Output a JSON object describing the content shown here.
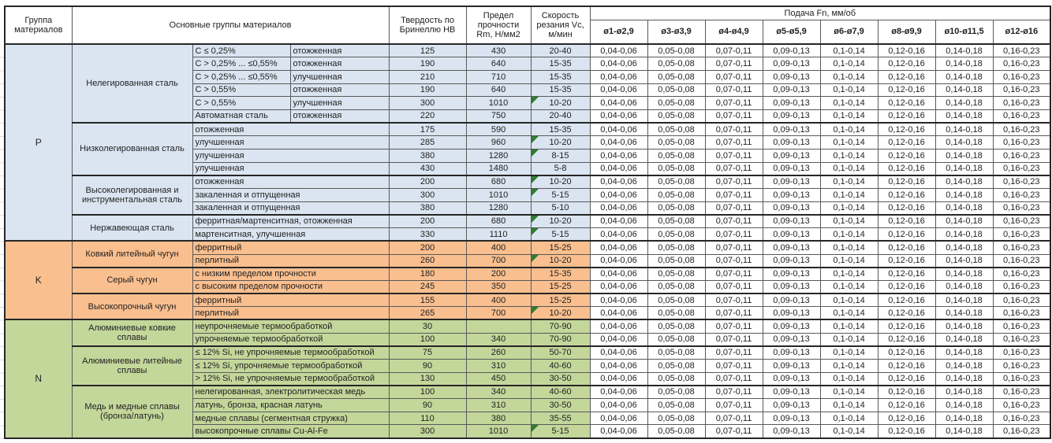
{
  "header": {
    "group": "Группа материалов",
    "materials": "Основные группы материалов",
    "hardness": "Твердость по Бринеллю HB",
    "strength": "Предел прочности Rm, Н/мм2",
    "speed": "Скорость резания Vc, м/мин",
    "feed": "Подача Fn, мм/об"
  },
  "feed_columns": [
    "ø1-ø2,9",
    "ø3-ø3,9",
    "ø4-ø4,9",
    "ø5-ø5,9",
    "ø6-ø7,9",
    "ø8-ø9,9",
    "ø10-ø11,5",
    "ø12-ø16"
  ],
  "feed_values": [
    "0,04-0,06",
    "0,05-0,08",
    "0,07-0,11",
    "0,09-0,13",
    "0,1-0,14",
    "0,12-0,16",
    "0,14-0,18",
    "0,16-0,23"
  ],
  "colors": {
    "group_p": "#dbe5f1",
    "group_k": "#fabf8f",
    "group_n": "#c4d79b",
    "flag": "#2e7d32",
    "border_thin": "#595959",
    "border_strong": "#262626"
  },
  "groups": [
    {
      "id": "P",
      "color_key": "group_p",
      "subgroups": [
        {
          "name": "Нелегированная сталь",
          "split": true,
          "rows": [
            {
              "c1": "C ≤ 0,25%",
              "c2": "отожженная",
              "hb": "125",
              "rm": "430",
              "vc": "20-40",
              "flag": false
            },
            {
              "c1": "C > 0,25% ... ≤0,55%",
              "c2": "отожженная",
              "hb": "190",
              "rm": "640",
              "vc": "15-35",
              "flag": false
            },
            {
              "c1": "C > 0,25% ... ≤0,55%",
              "c2": "улучшенная",
              "hb": "210",
              "rm": "710",
              "vc": "15-35",
              "flag": false
            },
            {
              "c1": "C > 0,55%",
              "c2": "отожженная",
              "hb": "190",
              "rm": "640",
              "vc": "15-35",
              "flag": false
            },
            {
              "c1": "C > 0,55%",
              "c2": "улучшенная",
              "hb": "300",
              "rm": "1010",
              "vc": "10-20",
              "flag": true
            },
            {
              "c1": "Автоматная сталь",
              "c2": "отожженная",
              "hb": "220",
              "rm": "750",
              "vc": "20-40",
              "flag": false
            }
          ]
        },
        {
          "name": "Низколегированная сталь",
          "split": false,
          "rows": [
            {
              "desc": "отожженная",
              "hb": "175",
              "rm": "590",
              "vc": "15-35",
              "flag": false
            },
            {
              "desc": "улучшенная",
              "hb": "285",
              "rm": "960",
              "vc": "10-20",
              "flag": true
            },
            {
              "desc": "улучшенная",
              "hb": "380",
              "rm": "1280",
              "vc": "8-15",
              "flag": true
            },
            {
              "desc": "улучшенная",
              "hb": "430",
              "rm": "1480",
              "vc": "5-8",
              "flag": false
            }
          ]
        },
        {
          "name": "Высоколегированная и инструментальная сталь",
          "split": false,
          "rows": [
            {
              "desc": "отожженная",
              "hb": "200",
              "rm": "680",
              "vc": "10-20",
              "flag": true
            },
            {
              "desc": "закаленная и отпущенная",
              "hb": "300",
              "rm": "1010",
              "vc": "5-15",
              "flag": true
            },
            {
              "desc": "закаленная и отпущенная",
              "hb": "380",
              "rm": "1280",
              "vc": "5-10",
              "flag": false
            }
          ]
        },
        {
          "name": "Нержавеющая сталь",
          "split": false,
          "rows": [
            {
              "desc": "ферритная/мартенситная, отожженная",
              "hb": "200",
              "rm": "680",
              "vc": "10-20",
              "flag": true
            },
            {
              "desc": "мартенситная, улучшенная",
              "hb": "330",
              "rm": "1110",
              "vc": "5-15",
              "flag": true
            }
          ]
        }
      ]
    },
    {
      "id": "K",
      "color_key": "group_k",
      "subgroups": [
        {
          "name": "Ковкий литейный чугун",
          "split": false,
          "rows": [
            {
              "desc": "ферритный",
              "hb": "200",
              "rm": "400",
              "vc": "15-25",
              "flag": false
            },
            {
              "desc": "перлитный",
              "hb": "260",
              "rm": "700",
              "vc": "10-20",
              "flag": true
            }
          ]
        },
        {
          "name": "Серый чугун",
          "split": false,
          "rows": [
            {
              "desc": "с низким пределом прочности",
              "hb": "180",
              "rm": "200",
              "vc": "15-35",
              "flag": false
            },
            {
              "desc": "с высоким пределом прочности",
              "hb": "245",
              "rm": "350",
              "vc": "15-25",
              "flag": false
            }
          ]
        },
        {
          "name": "Высокопрочный чугун",
          "split": false,
          "rows": [
            {
              "desc": "ферритный",
              "hb": "155",
              "rm": "400",
              "vc": "15-25",
              "flag": false
            },
            {
              "desc": "перлитный",
              "hb": "265",
              "rm": "700",
              "vc": "10-20",
              "flag": true
            }
          ]
        }
      ]
    },
    {
      "id": "N",
      "color_key": "group_n",
      "subgroups": [
        {
          "name": "Алюминиевые ковкие сплавы",
          "split": false,
          "rows": [
            {
              "desc": "неупрочняемые термообработкой",
              "hb": "30",
              "rm": "",
              "vc": "70-90",
              "flag": false
            },
            {
              "desc": "упрочняемые термообработкой",
              "hb": "100",
              "rm": "340",
              "vc": "70-90",
              "flag": false
            }
          ]
        },
        {
          "name": "Алюминиевые литейные сплавы",
          "split": false,
          "rows": [
            {
              "desc": "≤ 12% Si, не упрочняемые термообработкой",
              "hb": "75",
              "rm": "260",
              "vc": "50-70",
              "flag": false
            },
            {
              "desc": "≤ 12% Si, упрочняемые термообработкой",
              "hb": "90",
              "rm": "310",
              "vc": "40-60",
              "flag": false
            },
            {
              "desc": "> 12% Si, не упрочняемые термообработкой",
              "hb": "130",
              "rm": "450",
              "vc": "30-50",
              "flag": false
            }
          ]
        },
        {
          "name": "Медь и медные сплавы (бронза/латунь)",
          "split": false,
          "rows": [
            {
              "desc": "нелегированная, электролитическая медь",
              "hb": "100",
              "rm": "340",
              "vc": "40-60",
              "flag": false
            },
            {
              "desc": "латунь, бронза, красная латунь",
              "hb": "90",
              "rm": "310",
              "vc": "30-50",
              "flag": false
            },
            {
              "desc": "медные сплавы (сегментная стружка)",
              "hb": "110",
              "rm": "380",
              "vc": "35-55",
              "flag": false
            },
            {
              "desc": "высокопрочные сплавы Cu-Al-Fe",
              "hb": "300",
              "rm": "1010",
              "vc": "5-15",
              "flag": true
            }
          ]
        }
      ]
    }
  ]
}
